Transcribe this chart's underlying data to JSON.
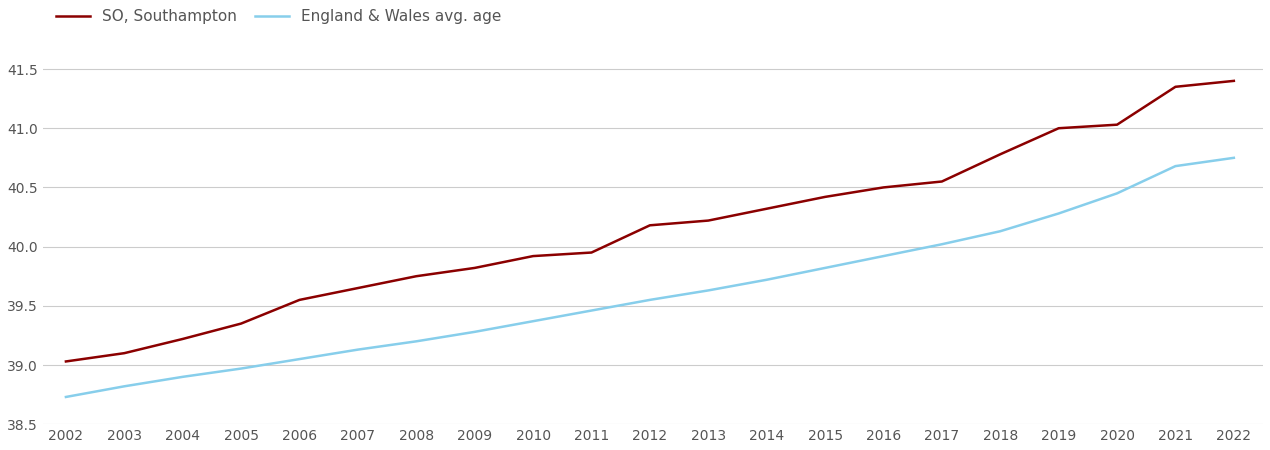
{
  "years": [
    2002,
    2003,
    2004,
    2005,
    2006,
    2007,
    2008,
    2009,
    2010,
    2011,
    2012,
    2013,
    2014,
    2015,
    2016,
    2017,
    2018,
    2019,
    2020,
    2021,
    2022
  ],
  "southampton": [
    39.03,
    39.1,
    39.22,
    39.35,
    39.55,
    39.65,
    39.75,
    39.82,
    39.92,
    39.95,
    40.18,
    40.22,
    40.32,
    40.42,
    40.5,
    40.55,
    40.78,
    41.0,
    41.03,
    41.35,
    41.4
  ],
  "england_wales": [
    38.73,
    38.82,
    38.9,
    38.97,
    39.05,
    39.13,
    39.2,
    39.28,
    39.37,
    39.46,
    39.55,
    39.63,
    39.72,
    39.82,
    39.92,
    40.02,
    40.13,
    40.28,
    40.45,
    40.68,
    40.75
  ],
  "so_color": "#8B0000",
  "ew_color": "#87CEEB",
  "so_label": "SO, Southampton",
  "ew_label": "England & Wales avg. age",
  "ylim": [
    38.5,
    41.65
  ],
  "yticks": [
    38.5,
    39.0,
    39.5,
    40.0,
    40.5,
    41.0,
    41.5
  ],
  "xlim_left": 2001.6,
  "xlim_right": 2022.5,
  "background_color": "#ffffff",
  "grid_color": "#cccccc",
  "line_width": 1.8,
  "legend_fontsize": 11,
  "tick_fontsize": 10,
  "tick_color": "#555555"
}
